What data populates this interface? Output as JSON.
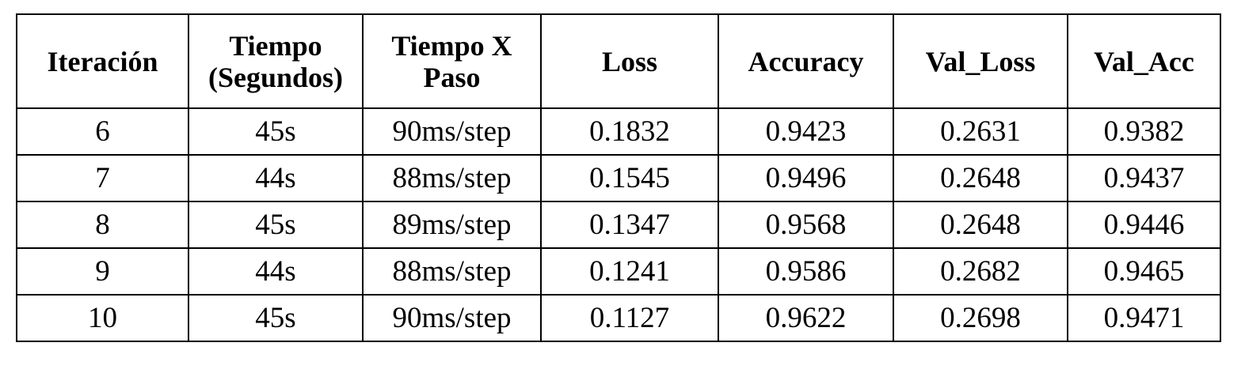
{
  "table": {
    "headers": [
      "Iteración",
      "Tiempo (Segundos)",
      "Tiempo X Paso",
      "Loss",
      "Accuracy",
      "Val_Loss",
      "Val_Acc"
    ],
    "rows": [
      [
        "6",
        "45s",
        "90ms/step",
        "0.1832",
        "0.9423",
        "0.2631",
        "0.9382"
      ],
      [
        "7",
        "44s",
        "88ms/step",
        "0.1545",
        "0.9496",
        "0.2648",
        "0.9437"
      ],
      [
        "8",
        "45s",
        "89ms/step",
        "0.1347",
        "0.9568",
        "0.2648",
        "0.9446"
      ],
      [
        "9",
        "44s",
        "88ms/step",
        "0.1241",
        "0.9586",
        "0.2682",
        "0.9465"
      ],
      [
        "10",
        "45s",
        "90ms/step",
        "0.1127",
        "0.9622",
        "0.2698",
        "0.9471"
      ]
    ]
  },
  "chart_data": {
    "type": "table",
    "columns": [
      "Iteración",
      "Tiempo (Segundos)",
      "Tiempo X Paso",
      "Loss",
      "Accuracy",
      "Val_Loss",
      "Val_Acc"
    ],
    "rows": [
      [
        "6",
        "45s",
        "90ms/step",
        "0.1832",
        "0.9423",
        "0.2631",
        "0.9382"
      ],
      [
        "7",
        "44s",
        "88ms/step",
        "0.1545",
        "0.9496",
        "0.2648",
        "0.9437"
      ],
      [
        "8",
        "45s",
        "89ms/step",
        "0.1347",
        "0.9568",
        "0.2648",
        "0.9446"
      ],
      [
        "9",
        "44s",
        "88ms/step",
        "0.1241",
        "0.9586",
        "0.2682",
        "0.9465"
      ],
      [
        "10",
        "45s",
        "90ms/step",
        "0.1127",
        "0.9622",
        "0.2698",
        "0.9471"
      ]
    ]
  }
}
